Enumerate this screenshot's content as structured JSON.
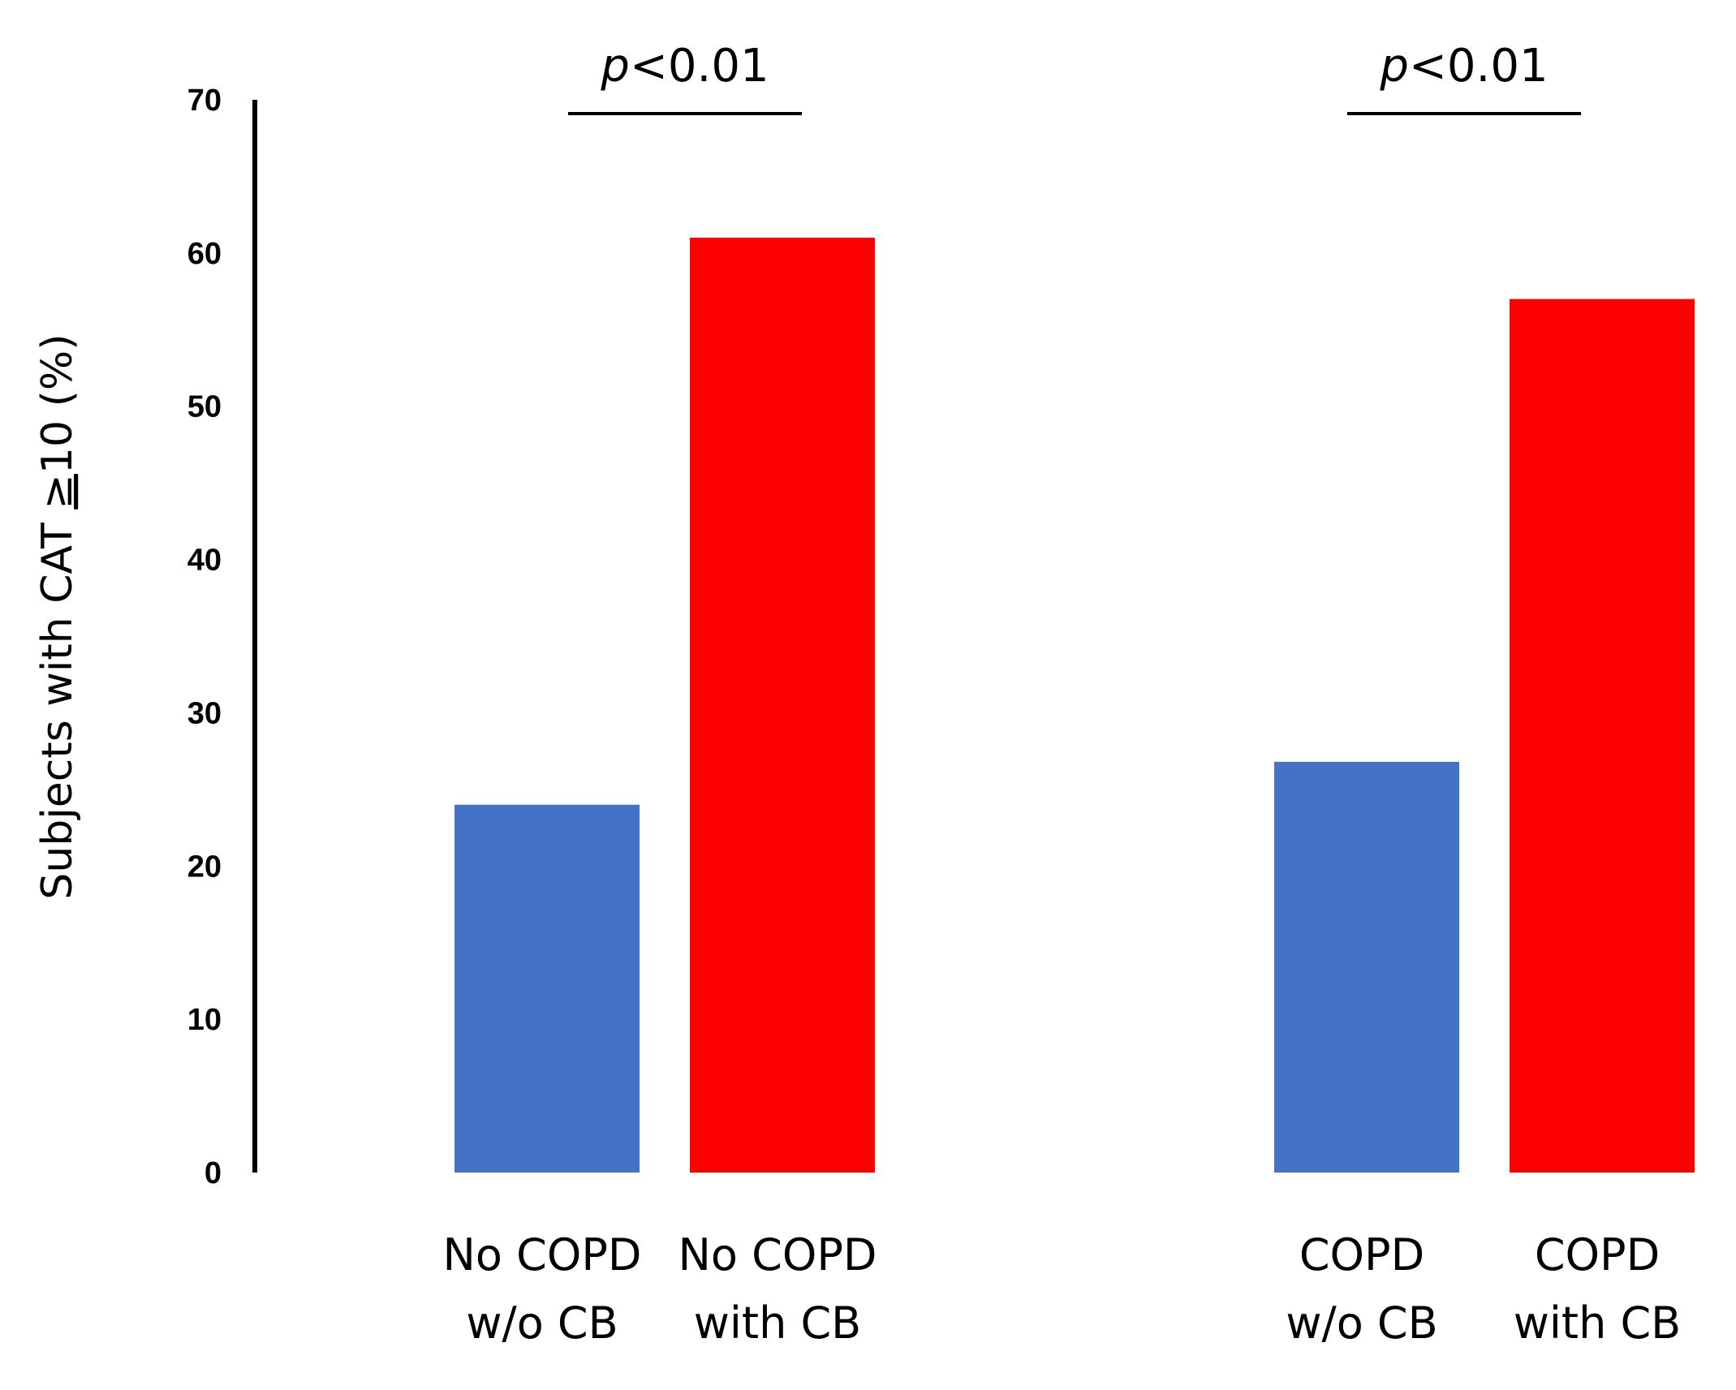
{
  "chart_data": {
    "type": "bar",
    "categories": [
      [
        "No COPD",
        "w/o CB"
      ],
      [
        "No COPD",
        "with CB"
      ],
      [
        "COPD",
        "w/o CB"
      ],
      [
        "COPD",
        "with CB"
      ]
    ],
    "values": [
      24,
      61,
      26.8,
      57
    ],
    "colors": [
      "#4472C4",
      "#FF0000",
      "#4472C4",
      "#FF0000"
    ],
    "ylim": [
      0,
      70
    ],
    "yticks": [
      0,
      10,
      20,
      30,
      40,
      50,
      60,
      70
    ],
    "ylabel": {
      "before": "Subjects with CAT ",
      "symbol": "≥",
      "after": "10 (%)"
    },
    "xlabel": "",
    "title": "",
    "significance": [
      {
        "p_italic": "p",
        "text": "<0.01",
        "between": [
          0,
          1
        ]
      },
      {
        "p_italic": "p",
        "text": "<0.01",
        "between": [
          2,
          3
        ]
      }
    ],
    "grid": false
  }
}
